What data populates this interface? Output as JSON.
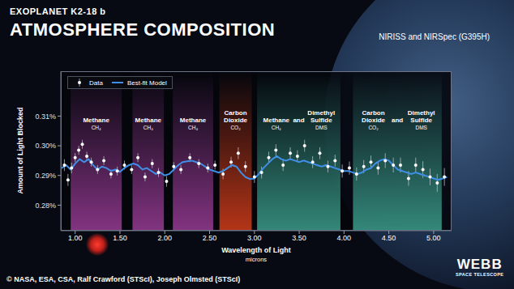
{
  "chart_data": {
    "type": "scatter",
    "supertitle": "EXOPLANET K2-18 b",
    "title": "ATMOSPHERE COMPOSITION",
    "subtitle": "NIRISS and NIRSpec (G395H)",
    "x_label": "Wavelength of Light",
    "x_unit": "microns",
    "y_label": "Amount of Light Blocked",
    "xlim": [
      0.84,
      5.2
    ],
    "xticks": [
      {
        "value": 1,
        "label": "1.00"
      },
      {
        "value": 1.5,
        "label": "1.50"
      },
      {
        "value": 2,
        "label": "2.00"
      },
      {
        "value": 2.5,
        "label": "2.50"
      },
      {
        "value": 3,
        "label": "3.00"
      },
      {
        "value": 3.5,
        "label": "3.50"
      },
      {
        "value": 4,
        "label": "4.00"
      },
      {
        "value": 4.5,
        "label": "4.50"
      },
      {
        "value": 5,
        "label": "5.00"
      }
    ],
    "ylim": [
      0.2714,
      0.3251
    ],
    "yticks": [
      {
        "value": 0.28,
        "label": "0.28%"
      },
      {
        "value": 0.29,
        "label": "0.29%"
      },
      {
        "value": 0.3,
        "label": "0.30%"
      },
      {
        "value": 0.31,
        "label": "0.31%"
      }
    ],
    "legend": "upper left",
    "series": [
      {
        "name": "Data",
        "type": "scatter",
        "color": "#ffffff",
        "marker": "circle",
        "x": [
          0.88,
          0.92,
          0.96,
          1.0,
          1.04,
          1.08,
          1.13,
          1.18,
          1.25,
          1.32,
          1.4,
          1.47,
          1.55,
          1.63,
          1.7,
          1.78,
          1.86,
          1.93,
          2.02,
          2.1,
          2.18,
          2.28,
          2.38,
          2.48,
          2.56,
          2.65,
          2.74,
          2.82,
          2.9,
          3.0,
          3.08,
          3.16,
          3.24,
          3.32,
          3.4,
          3.48,
          3.56,
          3.65,
          3.73,
          3.82,
          3.9,
          3.98,
          4.06,
          4.14,
          4.22,
          4.3,
          4.38,
          4.46,
          4.55,
          4.63,
          4.72,
          4.8,
          4.88,
          4.96,
          5.04,
          5.12
        ],
        "values": [
          0.2935,
          0.2885,
          0.2925,
          0.296,
          0.2985,
          0.3005,
          0.2965,
          0.2945,
          0.292,
          0.295,
          0.2905,
          0.2915,
          0.2935,
          0.292,
          0.296,
          0.2895,
          0.294,
          0.291,
          0.288,
          0.293,
          0.292,
          0.296,
          0.294,
          0.2925,
          0.2935,
          0.2905,
          0.2945,
          0.2975,
          0.293,
          0.2895,
          0.291,
          0.296,
          0.2985,
          0.2935,
          0.2975,
          0.2965,
          0.3,
          0.2945,
          0.2975,
          0.293,
          0.295,
          0.2915,
          0.2925,
          0.2905,
          0.293,
          0.2945,
          0.2925,
          0.295,
          0.2935,
          0.2935,
          0.289,
          0.2935,
          0.292,
          0.2895,
          0.2875,
          0.2895
        ],
        "errors": [
          0.002,
          0.002,
          0.0018,
          0.0015,
          0.0015,
          0.0015,
          0.0015,
          0.0015,
          0.0015,
          0.0015,
          0.0015,
          0.0015,
          0.0015,
          0.0015,
          0.0015,
          0.0015,
          0.0015,
          0.0015,
          0.0018,
          0.0015,
          0.0015,
          0.0015,
          0.0015,
          0.0015,
          0.0015,
          0.0018,
          0.0018,
          0.002,
          0.0018,
          0.002,
          0.002,
          0.002,
          0.002,
          0.002,
          0.002,
          0.002,
          0.002,
          0.002,
          0.002,
          0.002,
          0.002,
          0.0022,
          0.0022,
          0.0022,
          0.0022,
          0.0022,
          0.0022,
          0.0025,
          0.0025,
          0.0025,
          0.0025,
          0.0025,
          0.0028,
          0.0028,
          0.003,
          0.003
        ]
      },
      {
        "name": "Best-fit Model",
        "type": "line",
        "color": "#3f8fe8",
        "line_style": "solid",
        "x": [
          0.85,
          0.9,
          0.95,
          1.0,
          1.05,
          1.1,
          1.15,
          1.2,
          1.25,
          1.3,
          1.35,
          1.4,
          1.45,
          1.5,
          1.55,
          1.6,
          1.65,
          1.7,
          1.75,
          1.8,
          1.85,
          1.9,
          1.95,
          2.0,
          2.05,
          2.1,
          2.15,
          2.2,
          2.25,
          2.3,
          2.35,
          2.4,
          2.45,
          2.5,
          2.55,
          2.6,
          2.65,
          2.7,
          2.75,
          2.8,
          2.85,
          2.9,
          2.95,
          3.0,
          3.05,
          3.1,
          3.15,
          3.2,
          3.25,
          3.3,
          3.35,
          3.4,
          3.45,
          3.5,
          3.55,
          3.6,
          3.65,
          3.7,
          3.75,
          3.8,
          3.85,
          3.9,
          3.95,
          4.0,
          4.05,
          4.1,
          4.15,
          4.2,
          4.25,
          4.3,
          4.35,
          4.4,
          4.45,
          4.5,
          4.55,
          4.6,
          4.65,
          4.7,
          4.75,
          4.8,
          4.85,
          4.9,
          4.95,
          5.0,
          5.05,
          5.1,
          5.15
        ],
        "values": [
          0.2925,
          0.2935,
          0.292,
          0.294,
          0.2955,
          0.2945,
          0.2955,
          0.2935,
          0.292,
          0.293,
          0.2925,
          0.2915,
          0.292,
          0.2912,
          0.2925,
          0.2935,
          0.294,
          0.2935,
          0.292,
          0.2925,
          0.2915,
          0.2905,
          0.291,
          0.29,
          0.2905,
          0.292,
          0.2935,
          0.2945,
          0.2948,
          0.295,
          0.2945,
          0.294,
          0.293,
          0.292,
          0.2915,
          0.291,
          0.2915,
          0.2925,
          0.2935,
          0.293,
          0.291,
          0.2895,
          0.2888,
          0.289,
          0.2905,
          0.2925,
          0.294,
          0.2955,
          0.2965,
          0.2955,
          0.295,
          0.2955,
          0.295,
          0.2945,
          0.295,
          0.2945,
          0.294,
          0.2935,
          0.293,
          0.2935,
          0.293,
          0.2925,
          0.292,
          0.2915,
          0.2915,
          0.291,
          0.2905,
          0.291,
          0.292,
          0.2925,
          0.294,
          0.295,
          0.2955,
          0.295,
          0.2935,
          0.292,
          0.2915,
          0.291,
          0.2905,
          0.291,
          0.2905,
          0.29,
          0.2895,
          0.289,
          0.2885,
          0.289,
          0.2895
        ]
      }
    ],
    "bands": [
      {
        "molecules": [
          {
            "name": "Methane",
            "formula": "CH₄"
          }
        ],
        "range": [
          0.95,
          1.52
        ],
        "color": "#a23f9e"
      },
      {
        "molecules": [
          {
            "name": "Methane",
            "formula": "CH₄"
          }
        ],
        "range": [
          1.64,
          1.99
        ],
        "color": "#a23f9e"
      },
      {
        "molecules": [
          {
            "name": "Methane",
            "formula": "CH₄"
          }
        ],
        "range": [
          2.09,
          2.54
        ],
        "color": "#a23f9e"
      },
      {
        "molecules": [
          {
            "name": "Carbon Dioxide",
            "formula": "CO₂"
          }
        ],
        "range": [
          2.61,
          2.97
        ],
        "color": "#e0401a"
      },
      {
        "molecules": [
          {
            "name": "Methane",
            "formula": "CH₄"
          },
          {
            "name": "Dimethyl Sulfide",
            "formula": "DMS"
          }
        ],
        "joiner": "and",
        "range": [
          3.03,
          3.96
        ],
        "color": "#3fa894"
      },
      {
        "molecules": [
          {
            "name": "Carbon Dioxide",
            "formula": "CO₂"
          },
          {
            "name": "Dimethyl Sulfide",
            "formula": "DMS"
          }
        ],
        "joiner": "and",
        "range": [
          4.1,
          5.09
        ],
        "color": "#3fa894"
      }
    ],
    "credit": "© NASA, ESA, CSA, Ralf Crawford (STScI), Joseph Olmsted (STScI)",
    "logo": {
      "name": "WEBB",
      "subtitle": "SPACE TELESCOPE"
    }
  }
}
